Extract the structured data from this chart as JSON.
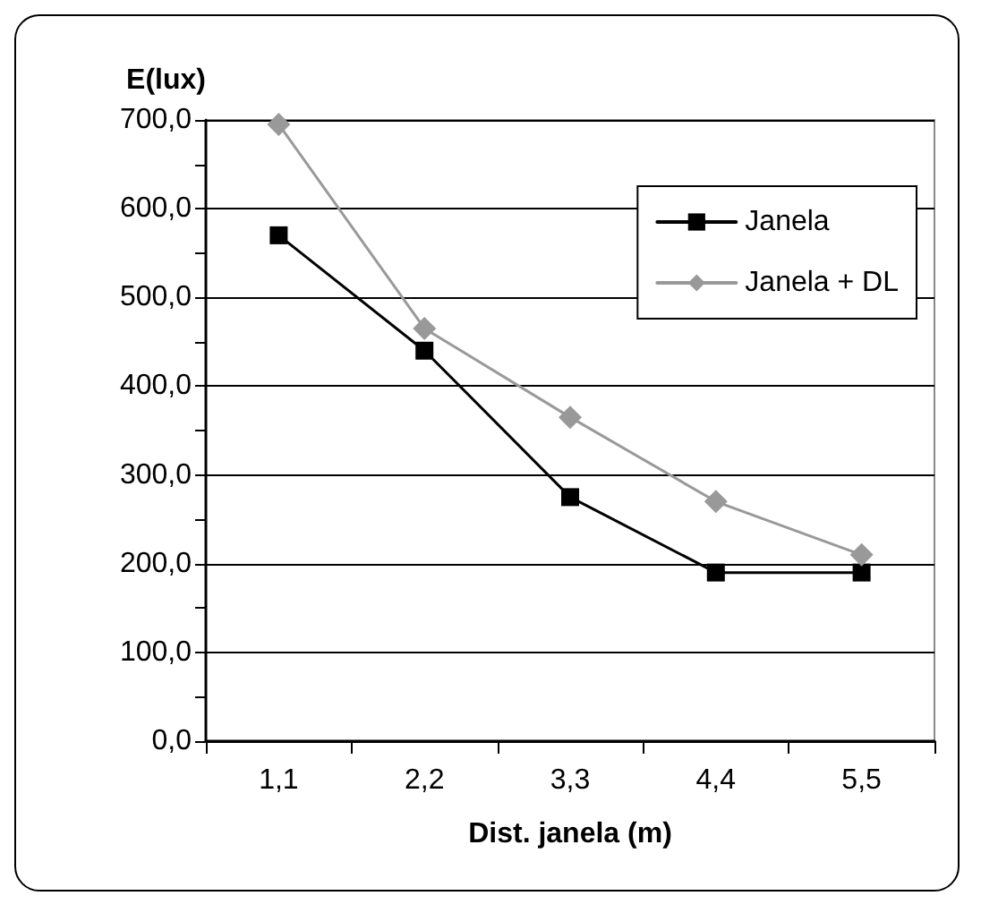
{
  "chart_data": {
    "type": "line",
    "ylabel": "E(lux)",
    "xlabel": "Dist. janela (m)",
    "categories": [
      "1,1",
      "2,2",
      "3,3",
      "4,4",
      "5,5"
    ],
    "series": [
      {
        "name": "Janela",
        "color": "#000000",
        "marker": "square",
        "values": [
          570,
          440,
          275,
          190,
          190
        ]
      },
      {
        "name": "Janela + DL",
        "color": "#999999",
        "marker": "diamond",
        "values": [
          695,
          465,
          365,
          270,
          210
        ]
      }
    ],
    "ylim": [
      0,
      700
    ],
    "yticks": [
      {
        "value": 0,
        "label": "0,0"
      },
      {
        "value": 50,
        "label": null
      },
      {
        "value": 100,
        "label": "100,0"
      },
      {
        "value": 150,
        "label": null
      },
      {
        "value": 200,
        "label": "200,0"
      },
      {
        "value": 250,
        "label": null
      },
      {
        "value": 300,
        "label": "300,0"
      },
      {
        "value": 350,
        "label": null
      },
      {
        "value": 400,
        "label": "400,0"
      },
      {
        "value": 450,
        "label": null
      },
      {
        "value": 500,
        "label": "500,0"
      },
      {
        "value": 550,
        "label": null
      },
      {
        "value": 600,
        "label": "600,0"
      },
      {
        "value": 650,
        "label": null
      },
      {
        "value": 700,
        "label": "700,0"
      }
    ],
    "grid": "y",
    "legend": "top right",
    "line_style": "solid"
  }
}
